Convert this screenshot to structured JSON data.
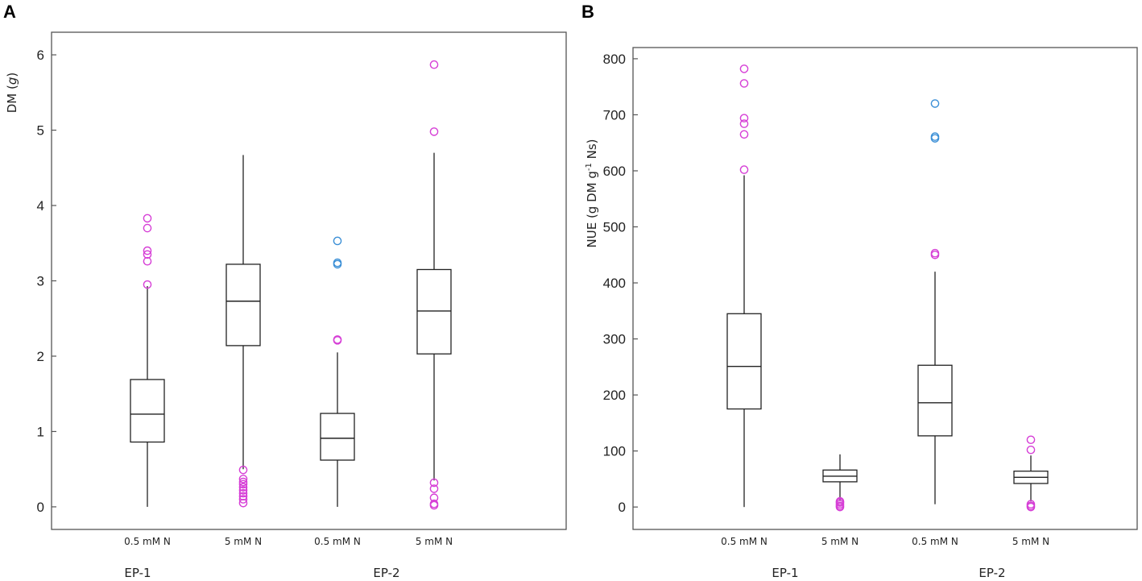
{
  "panels": {
    "a": {
      "letter": "A"
    },
    "b": {
      "letter": "B"
    }
  },
  "colors": {
    "outlier_pink": "#d63fd6",
    "outlier_blue": "#3b8fd6",
    "line": "#222222",
    "frame": "#555555"
  },
  "chart_data": [
    {
      "type": "box",
      "panel": "A",
      "ylabel": "DM (g)",
      "ylabel_main": "DM (",
      "ylabel_italic": "g",
      "ylabel_end": ")",
      "ylim": [
        -0.3,
        6.3
      ],
      "yticks": [
        0,
        1,
        2,
        3,
        4,
        5,
        6
      ],
      "categories": [
        "0.5 mM N",
        "5 mM N",
        "0.5 mM N",
        "5 mM N"
      ],
      "groups": [
        {
          "label": "EP-1",
          "span": [
            0,
            1
          ]
        },
        {
          "label": "EP-2",
          "span": [
            2,
            3
          ]
        }
      ],
      "boxes": [
        {
          "min": 0.0,
          "q1": 0.86,
          "median": 1.23,
          "q3": 1.69,
          "max": 2.93,
          "outliers": [
            2.95,
            3.26,
            3.35,
            3.4,
            3.7,
            3.83
          ],
          "outlier_color": "pink"
        },
        {
          "min": 0.5,
          "q1": 2.14,
          "median": 2.73,
          "q3": 3.22,
          "max": 4.67,
          "outliers": [
            0.05,
            0.1,
            0.14,
            0.18,
            0.22,
            0.26,
            0.3,
            0.33,
            0.37,
            0.49
          ],
          "outlier_color": "pink"
        },
        {
          "min": 0.0,
          "q1": 0.62,
          "median": 0.91,
          "q3": 1.24,
          "max": 2.05,
          "outliers": [
            2.21,
            2.22
          ],
          "outlier_color": "pink",
          "outliers_b": [
            3.22,
            3.24,
            3.53
          ],
          "outlier_b_color": "blue"
        },
        {
          "min": 0.35,
          "q1": 2.03,
          "median": 2.6,
          "q3": 3.15,
          "max": 4.7,
          "outliers": [
            0.02,
            0.04,
            0.12,
            0.24,
            0.32,
            4.98,
            5.87
          ],
          "outlier_color": "pink"
        }
      ]
    },
    {
      "type": "box",
      "panel": "B",
      "ylabel": "NUE (g DM g-1 Ns)",
      "ylabel_main": "NUE (g DM g",
      "ylabel_sup": "-1",
      "ylabel_end": " Ns)",
      "ylim": [
        -40,
        820
      ],
      "yticks": [
        0,
        100,
        200,
        300,
        400,
        500,
        600,
        700,
        800
      ],
      "categories": [
        "0.5 mM N",
        "5 mM N",
        "0.5 mM N",
        "5 mM N"
      ],
      "groups": [
        {
          "label": "EP-1",
          "span": [
            0,
            1
          ]
        },
        {
          "label": "EP-2",
          "span": [
            2,
            3
          ]
        }
      ],
      "boxes": [
        {
          "min": 0,
          "q1": 175,
          "median": 251,
          "q3": 345,
          "max": 592,
          "outliers": [
            602,
            665,
            684,
            694,
            756,
            782
          ],
          "outlier_color": "pink"
        },
        {
          "min": 12,
          "q1": 45,
          "median": 55,
          "q3": 66,
          "max": 94,
          "outliers": [
            0,
            2,
            5,
            8,
            10
          ],
          "outlier_color": "pink"
        },
        {
          "min": 5,
          "q1": 127,
          "median": 186,
          "q3": 253,
          "max": 420,
          "outliers": [
            450,
            453
          ],
          "outlier_color": "pink",
          "outliers_b": [
            658,
            661,
            720
          ],
          "outlier_b_color": "blue"
        },
        {
          "min": 10,
          "q1": 42,
          "median": 53,
          "q3": 64,
          "max": 92,
          "outliers": [
            0,
            2,
            5,
            102,
            120
          ],
          "outlier_color": "pink"
        }
      ]
    }
  ]
}
